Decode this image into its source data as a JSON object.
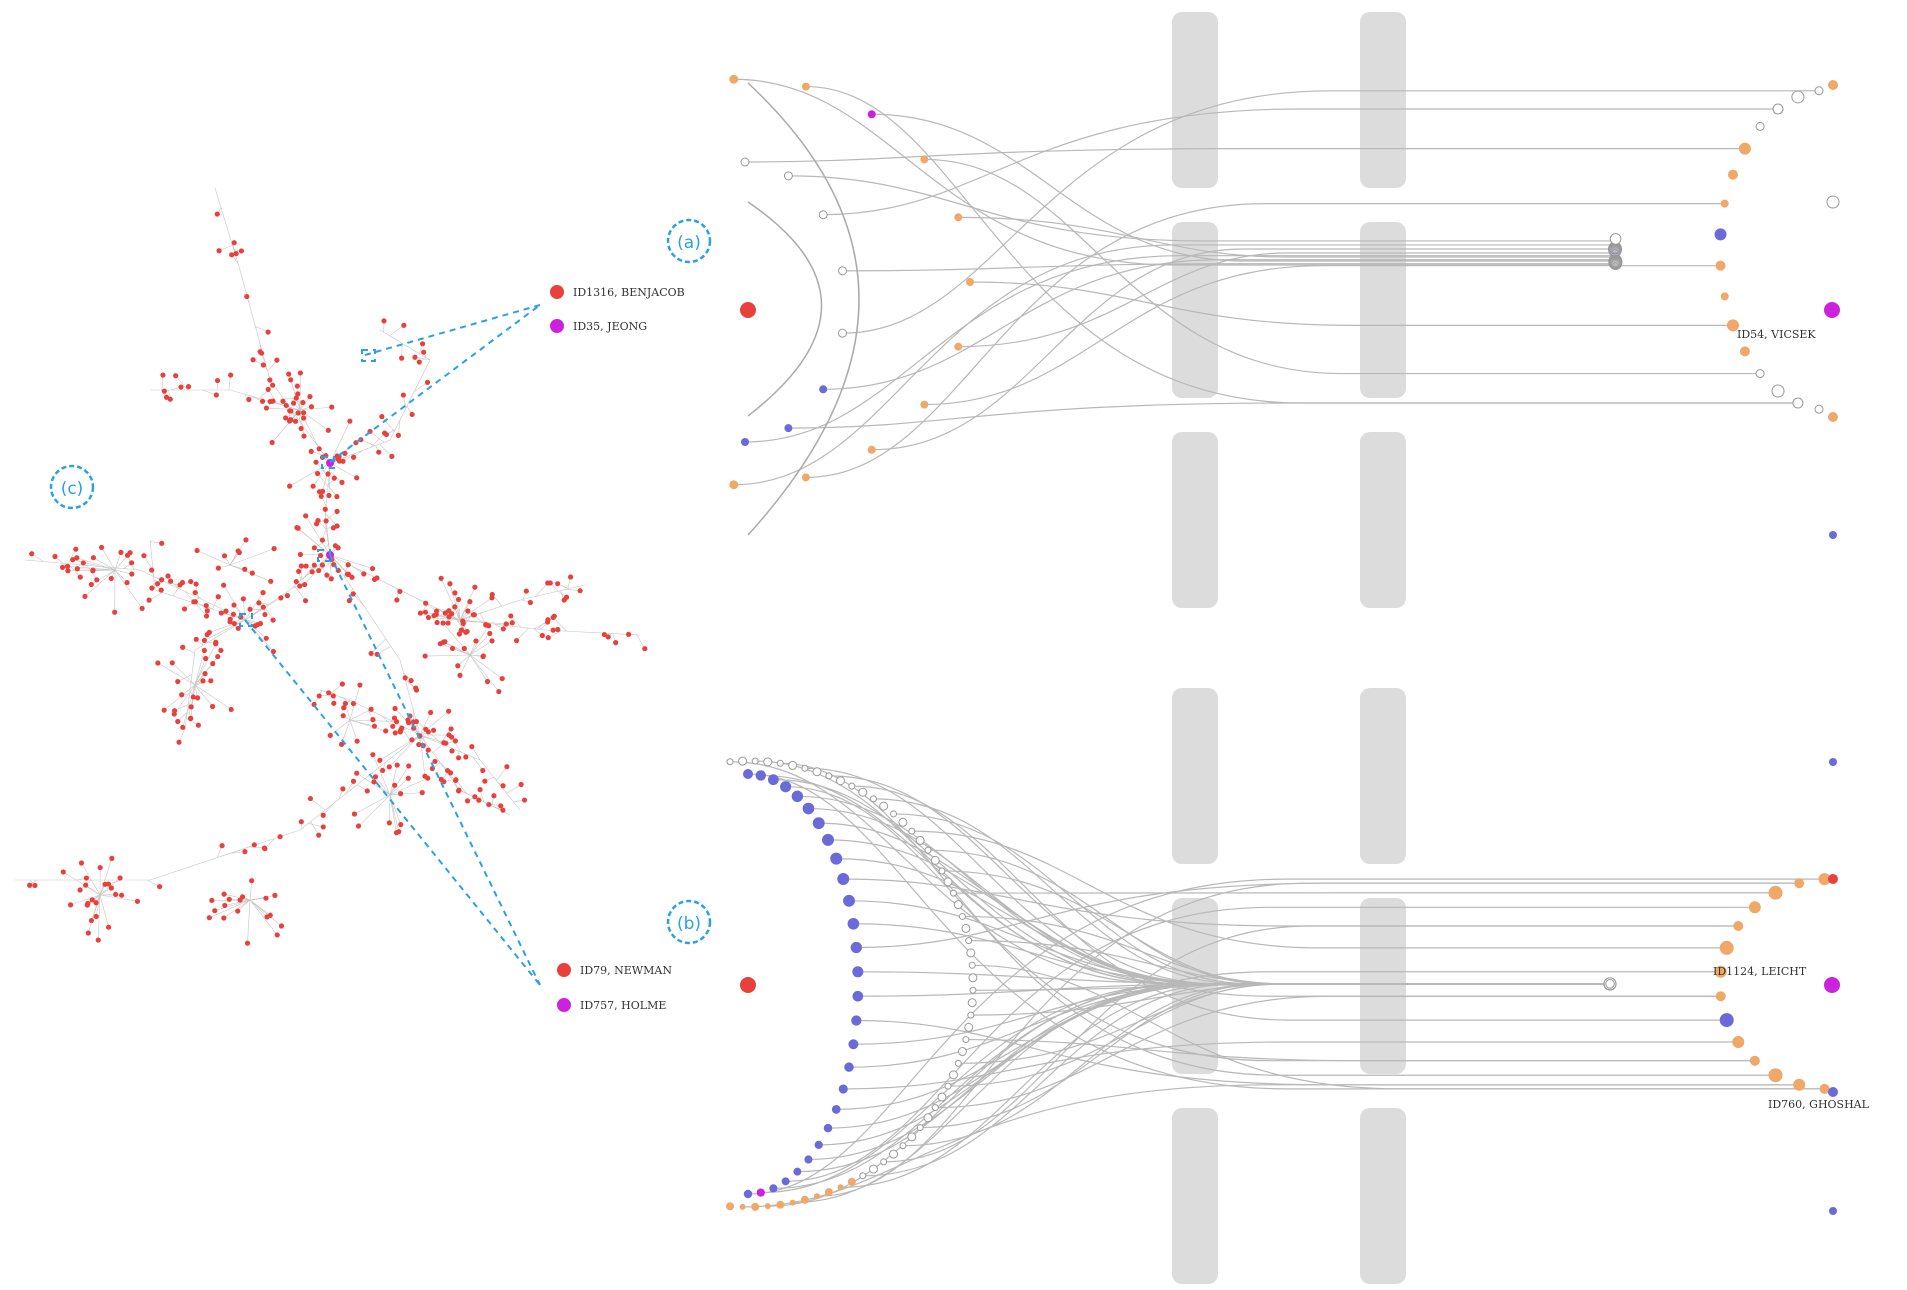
{
  "colors": {
    "node_red": "#e8413c",
    "node_magenta": "#cc22dd",
    "node_blue": "#6a6ad8",
    "node_orange": "#f0a868",
    "node_white": "#ffffff",
    "link": "#b8b8b8",
    "column_bar": "#dcdcdc",
    "annotation": "#2aa0e8"
  },
  "panel_labels": {
    "a": "(a)",
    "b": "(b)",
    "c": "(c)"
  },
  "legend_a": [
    {
      "label": "ID1316, BENJACOB",
      "color": "node_red"
    },
    {
      "label": "ID35, JEONG",
      "color": "node_magenta"
    }
  ],
  "legend_b": [
    {
      "label": "ID79, NEWMAN",
      "color": "node_red"
    },
    {
      "label": "ID757, HOLME",
      "color": "node_magenta"
    }
  ],
  "node_labels": {
    "top_right": "ID54, VICSEK",
    "bottom_right_1": "ID1124, LEICHT",
    "bottom_right_2": "ID760, GHOSHAL"
  }
}
